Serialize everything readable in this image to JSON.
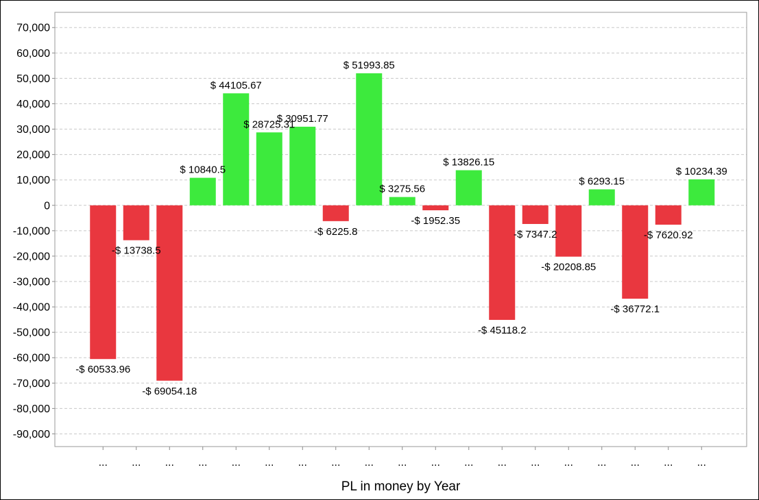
{
  "chart_data": {
    "type": "bar",
    "title": "",
    "xlabel": "PL in money by Year",
    "ylabel": "",
    "ylim": [
      -95000,
      76000
    ],
    "yticks": [
      70000,
      60000,
      50000,
      40000,
      30000,
      20000,
      10000,
      0,
      -10000,
      -20000,
      -30000,
      -40000,
      -50000,
      -60000,
      -70000,
      -80000,
      -90000
    ],
    "ytick_labels": [
      "70,000",
      "60,000",
      "50,000",
      "40,000",
      "30,000",
      "20,000",
      "10,000",
      "0",
      "-10,000",
      "-20,000",
      "-30,000",
      "-40,000",
      "-50,000",
      "-60,000",
      "-70,000",
      "-80,000",
      "-90,000"
    ],
    "grid": true,
    "positive_color": "#3dea3d",
    "negative_color": "#e9373f",
    "categories": [
      "...",
      "...",
      "...",
      "...",
      "...",
      "...",
      "...",
      "...",
      "...",
      "...",
      "...",
      "...",
      "...",
      "...",
      "...",
      "...",
      "...",
      "...",
      "..."
    ],
    "values": [
      -60533.96,
      -13738.5,
      -69054.18,
      10840.5,
      44105.67,
      28725.31,
      30951.77,
      -6225.8,
      51993.85,
      3275.56,
      -1952.35,
      13826.15,
      -45118.2,
      -7347.2,
      -20208.85,
      6293.15,
      -36772.1,
      -7620.92,
      10234.39
    ],
    "data_labels": [
      "-$ 60533.96",
      "-$ 13738.5",
      "-$ 69054.18",
      "$ 10840.5",
      "$ 44105.67",
      "$ 28725.31",
      "$ 30951.77",
      "-$ 6225.8",
      "$ 51993.85",
      "$ 3275.56",
      "-$ 1952.35",
      "$ 13826.15",
      "-$ 45118.2",
      "-$ 7347.2",
      "-$ 20208.85",
      "$ 6293.15",
      "-$ 36772.1",
      "-$ 7620.92",
      "$ 10234.39"
    ]
  }
}
